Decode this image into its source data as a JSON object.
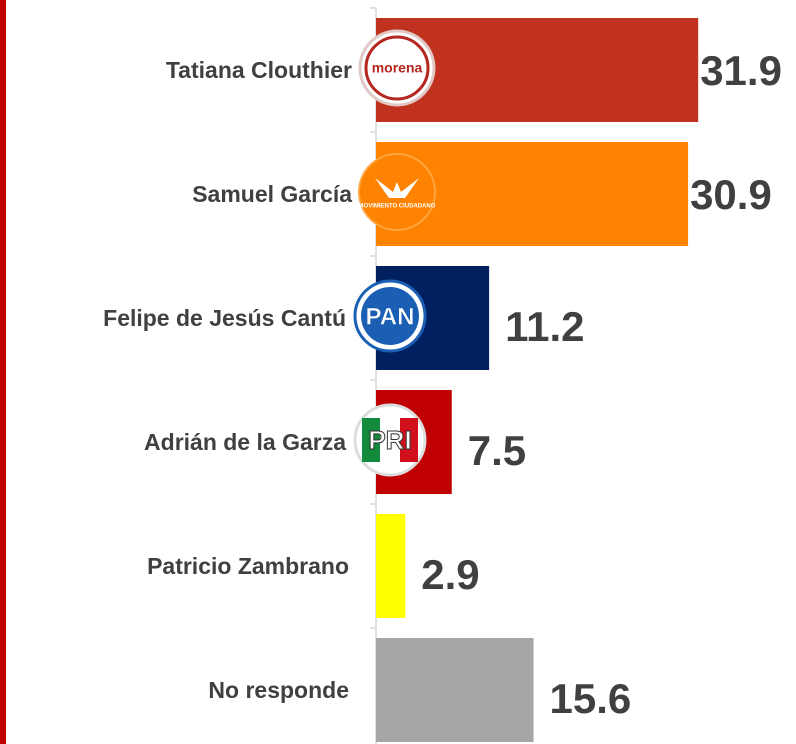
{
  "chart_data": {
    "type": "barh",
    "categories": [
      "Tatiana Clouthier",
      "Samuel García",
      "Felipe de Jesús Cantú",
      "Adrián de la Garza",
      "Patricio Zambrano",
      "No responde"
    ],
    "values": [
      31.9,
      30.9,
      11.2,
      7.5,
      2.9,
      15.6
    ],
    "colors": [
      "#c0311f",
      "#ff8200",
      "#002060",
      "#c00000",
      "#ffff00",
      "#a6a6a6"
    ],
    "party_logos": [
      "morena",
      "MOVIMIENTO CIUDADANO",
      "PAN",
      "PRI",
      null,
      null
    ],
    "xlim": [
      0,
      40
    ]
  }
}
